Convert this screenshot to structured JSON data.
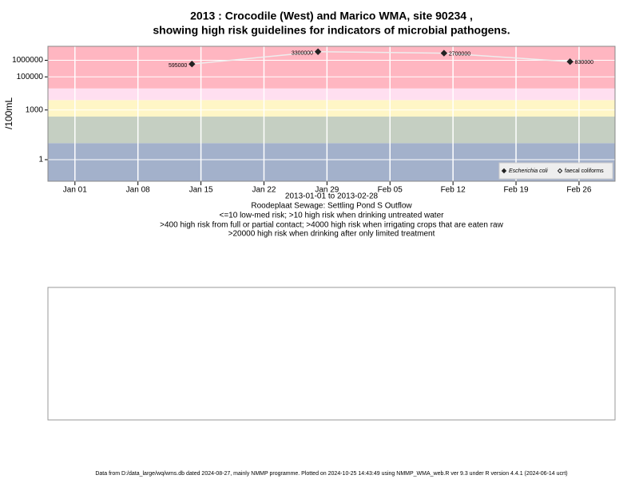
{
  "chart_data": {
    "type": "line",
    "title": [
      "2013 : Crocodile (West) and Marico WMA, site 90234 ,",
      "showing high risk guidelines for indicators of microbial pathogens."
    ],
    "y_label": "/100mL",
    "x_label": "2013-01-01 to 2013-02-28",
    "notes": [
      "Roodeplaat Sewage: Settling Pond S Outflow",
      "<=10 low-med risk; >10 high risk when drinking untreated water",
      ">400 high risk from full or partial contact; >4000 high risk when irrigating crops that are eaten raw",
      ">20000 high risk when drinking after only limited treatment"
    ],
    "x": [
      "2013-01-14",
      "2013-01-28",
      "2013-02-11",
      "2013-02-25"
    ],
    "series": [
      {
        "name": "Escherichia coli",
        "color": "#222222",
        "values": [
          595000,
          3300000,
          2700000,
          830000
        ]
      },
      {
        "name": "faecal coliforms",
        "color": "#222222",
        "values": [
          null,
          null,
          null,
          null
        ]
      }
    ],
    "bands": [
      {
        "range": [
          0.05,
          10
        ],
        "color": "#a3b1cb"
      },
      {
        "range": [
          10,
          400
        ],
        "color": "#c5cfc2"
      },
      {
        "range": [
          400,
          4000
        ],
        "color": "#fff6c6"
      },
      {
        "range": [
          4000,
          20000
        ],
        "color": "#ffdff0"
      },
      {
        "range": [
          20000,
          7000000
        ],
        "color": "#ffb6c1"
      }
    ],
    "log_y": true,
    "ylim": [
      0.05,
      7000000
    ],
    "yticks": [
      1,
      1000,
      100000,
      1000000
    ],
    "xlim": [
      "2012-12-29",
      "2013-03-02"
    ],
    "xticks": [
      {
        "value": "2013-01-01",
        "label": "Jan 01"
      },
      {
        "value": "2013-01-08",
        "label": "Jan 08"
      },
      {
        "value": "2013-01-15",
        "label": "Jan 15"
      },
      {
        "value": "2013-01-22",
        "label": "Jan 22"
      },
      {
        "value": "2013-01-29",
        "label": "Jan 29"
      },
      {
        "value": "2013-02-05",
        "label": "Feb 05"
      },
      {
        "value": "2013-02-12",
        "label": "Feb 12"
      },
      {
        "value": "2013-02-19",
        "label": "Feb 19"
      },
      {
        "value": "2013-02-26",
        "label": "Feb 26"
      }
    ],
    "grid": true,
    "legend_position": "bottom-right"
  },
  "footer": "Data from D:/data_large/wq/wms.db dated 2024-08-27, mainly NMMP programme. Plotted on 2024-10-25 14:43:49 using NMMP_WMA_web.R ver 9.3 under R version 4.4.1 (2024-06-14 ucrt)"
}
